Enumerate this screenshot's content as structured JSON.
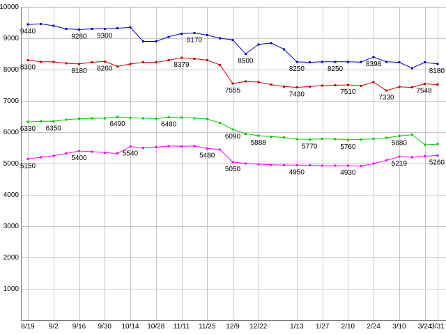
{
  "chart_data": {
    "type": "line",
    "title": "",
    "xlabel": "",
    "ylabel": "",
    "num_points": 33,
    "ylim": [
      0,
      10000
    ],
    "ytick_step": 1000,
    "ytick_labels": [
      "1000",
      "2000",
      "3000",
      "4000",
      "5000",
      "6000",
      "7000",
      "8000",
      "9000",
      "10000"
    ],
    "xtick_labels": [
      {
        "i": 0,
        "label": "8/19"
      },
      {
        "i": 2,
        "label": "9/2"
      },
      {
        "i": 4,
        "label": "9/16"
      },
      {
        "i": 6,
        "label": "9/30"
      },
      {
        "i": 8,
        "label": "10/14"
      },
      {
        "i": 10,
        "label": "10/28"
      },
      {
        "i": 12,
        "label": "11/11"
      },
      {
        "i": 14,
        "label": "11/25"
      },
      {
        "i": 16,
        "label": "12/9"
      },
      {
        "i": 18,
        "label": "12/22"
      },
      {
        "i": 21,
        "label": "1/13"
      },
      {
        "i": 23,
        "label": "1/27"
      },
      {
        "i": 25,
        "label": "2/10"
      },
      {
        "i": 27,
        "label": "2/24"
      },
      {
        "i": 29,
        "label": "3/10"
      },
      {
        "i": 31,
        "label": "3/24"
      },
      {
        "i": 32,
        "label": "3/31"
      }
    ],
    "grid": true,
    "legend": "none",
    "colors": {
      "grid": "#c6c6c6",
      "axis": "#777777",
      "background": "#ffffff",
      "label": "#000000"
    },
    "series": [
      {
        "name": "series-blue",
        "color": "#0000cc",
        "values": [
          9440,
          9460,
          9400,
          9300,
          9280,
          9300,
          9300,
          9320,
          9350,
          8900,
          8900,
          9050,
          9150,
          9170,
          9100,
          9000,
          8950,
          8500,
          8800,
          8850,
          8650,
          8250,
          8230,
          8250,
          8250,
          8250,
          8240,
          8398,
          8250,
          8230,
          8050,
          8230,
          8180
        ],
        "point_labels": [
          {
            "i": 0,
            "text": "9440"
          },
          {
            "i": 4,
            "text": "9280"
          },
          {
            "i": 6,
            "text": "9300"
          },
          {
            "i": 13,
            "text": "9170"
          },
          {
            "i": 17,
            "text": "8500"
          },
          {
            "i": 21,
            "text": "8250"
          },
          {
            "i": 24,
            "text": "8250"
          },
          {
            "i": 27,
            "text": "8398"
          },
          {
            "i": 32,
            "text": "8180"
          }
        ]
      },
      {
        "name": "series-red",
        "color": "#cc0000",
        "values": [
          8300,
          8250,
          8250,
          8200,
          8180,
          8230,
          8260,
          8100,
          8180,
          8230,
          8230,
          8300,
          8379,
          8350,
          8300,
          8150,
          7555,
          7620,
          7600,
          7520,
          7460,
          7430,
          7460,
          7490,
          7500,
          7510,
          7480,
          7600,
          7330,
          7450,
          7430,
          7548,
          7520
        ],
        "point_labels": [
          {
            "i": 0,
            "text": "8300"
          },
          {
            "i": 4,
            "text": "8180"
          },
          {
            "i": 6,
            "text": "8260"
          },
          {
            "i": 12,
            "text": "8379"
          },
          {
            "i": 16,
            "text": "7555"
          },
          {
            "i": 21,
            "text": "7430"
          },
          {
            "i": 25,
            "text": "7510"
          },
          {
            "i": 28,
            "text": "7330"
          },
          {
            "i": 31,
            "text": "7548"
          }
        ]
      },
      {
        "name": "series-green",
        "color": "#00cc00",
        "values": [
          6330,
          6350,
          6350,
          6400,
          6430,
          6440,
          6450,
          6490,
          6460,
          6450,
          6430,
          6480,
          6470,
          6450,
          6420,
          6300,
          6090,
          5950,
          5888,
          5860,
          5830,
          5780,
          5770,
          5790,
          5780,
          5760,
          5770,
          5790,
          5820,
          5880,
          5920,
          5600,
          5620
        ],
        "point_labels": [
          {
            "i": 0,
            "text": "6330"
          },
          {
            "i": 2,
            "text": "6350"
          },
          {
            "i": 7,
            "text": "6490"
          },
          {
            "i": 11,
            "text": "6480"
          },
          {
            "i": 16,
            "text": "6090"
          },
          {
            "i": 18,
            "text": "5888"
          },
          {
            "i": 22,
            "text": "5770"
          },
          {
            "i": 25,
            "text": "5760"
          },
          {
            "i": 29,
            "text": "5880"
          }
        ]
      },
      {
        "name": "series-magenta",
        "color": "#ff00ff",
        "values": [
          5150,
          5200,
          5250,
          5320,
          5400,
          5380,
          5350,
          5320,
          5540,
          5500,
          5520,
          5560,
          5550,
          5560,
          5480,
          5450,
          5050,
          5000,
          4980,
          4960,
          4950,
          4950,
          4940,
          4930,
          4930,
          4930,
          4920,
          5000,
          5100,
          5219,
          5200,
          5230,
          5260
        ],
        "point_labels": [
          {
            "i": 0,
            "text": "5150"
          },
          {
            "i": 4,
            "text": "5400"
          },
          {
            "i": 8,
            "text": "5540"
          },
          {
            "i": 14,
            "text": "5480"
          },
          {
            "i": 16,
            "text": "5050"
          },
          {
            "i": 21,
            "text": "4950"
          },
          {
            "i": 25,
            "text": "4930"
          },
          {
            "i": 29,
            "text": "5219"
          },
          {
            "i": 32,
            "text": "5260"
          }
        ]
      }
    ]
  }
}
